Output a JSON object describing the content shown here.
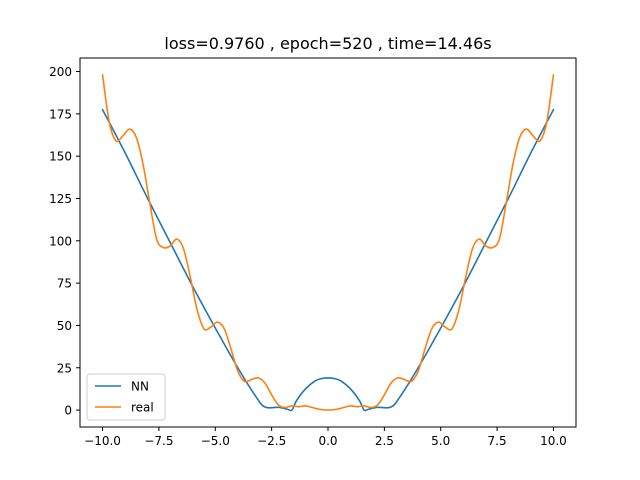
{
  "chart_data": {
    "type": "line",
    "title": "loss=0.9760 , epoch=520 , time=14.46s",
    "xlabel": "",
    "ylabel": "",
    "xlim": [
      -11.0,
      11.0
    ],
    "ylim": [
      -10.0,
      208.0
    ],
    "xticks": [
      -10.0,
      -7.5,
      -5.0,
      -2.5,
      0.0,
      2.5,
      5.0,
      7.5,
      10.0
    ],
    "xtick_labels": [
      "−10.0",
      "−7.5",
      "−5.0",
      "−2.5",
      "0.0",
      "2.5",
      "5.0",
      "7.5",
      "10.0"
    ],
    "yticks": [
      0,
      25,
      50,
      75,
      100,
      125,
      150,
      175,
      200
    ],
    "ytick_labels": [
      "0",
      "25",
      "50",
      "75",
      "100",
      "125",
      "150",
      "175",
      "200"
    ],
    "grid": false,
    "legend": {
      "position": "lower-left"
    },
    "series": [
      {
        "name": "NN",
        "color": "#1f77b4",
        "x": [
          -10.0,
          -9.0,
          -8.0,
          -7.0,
          -6.0,
          -5.0,
          -4.0,
          -3.2,
          -2.8,
          -2.2,
          -1.8,
          -1.6,
          -1.4,
          -1.0,
          -0.6,
          -0.3,
          0.0,
          0.3,
          0.6,
          1.0,
          1.4,
          1.6,
          1.8,
          2.2,
          2.8,
          3.2,
          4.0,
          5.0,
          6.0,
          7.0,
          8.0,
          9.0,
          10.0
        ],
        "y": [
          177.5,
          152.0,
          125.0,
          99.0,
          73.0,
          48.5,
          25.0,
          8.0,
          1.8,
          1.6,
          0.5,
          0.0,
          5.5,
          12.5,
          17.0,
          18.6,
          19.0,
          18.6,
          17.0,
          12.5,
          5.5,
          0.0,
          0.5,
          1.6,
          1.8,
          8.0,
          25.0,
          48.5,
          73.0,
          99.0,
          125.0,
          152.0,
          177.5
        ]
      },
      {
        "name": "real",
        "color": "#ff7f0e",
        "x": [
          -10.0,
          -9.7,
          -9.4,
          -9.1,
          -8.8,
          -8.5,
          -8.2,
          -7.9,
          -7.6,
          -7.3,
          -7.0,
          -6.7,
          -6.4,
          -6.1,
          -5.8,
          -5.5,
          -5.2,
          -4.9,
          -4.6,
          -4.3,
          -4.0,
          -3.7,
          -3.4,
          -3.1,
          -2.8,
          -2.5,
          -2.2,
          -1.9,
          -1.6,
          -1.3,
          -1.0,
          -0.7,
          -0.4,
          0.0,
          0.4,
          0.7,
          1.0,
          1.3,
          1.6,
          1.9,
          2.2,
          2.5,
          2.8,
          3.1,
          3.4,
          3.7,
          4.0,
          4.3,
          4.6,
          4.9,
          5.2,
          5.5,
          5.8,
          6.1,
          6.4,
          6.7,
          7.0,
          7.3,
          7.6,
          7.9,
          8.2,
          8.5,
          8.8,
          9.1,
          9.4,
          9.7,
          10.0
        ],
        "y": [
          198.0,
          170.0,
          159.0,
          162.0,
          166.0,
          161.0,
          145.0,
          122.0,
          101.0,
          96.0,
          97.0,
          101.0,
          95.0,
          78.0,
          59.0,
          48.0,
          49.0,
          52.0,
          48.0,
          36.0,
          23.0,
          17.0,
          18.0,
          19.0,
          16.0,
          9.0,
          3.0,
          1.5,
          2.5,
          2.0,
          2.5,
          1.5,
          0.5,
          0.0,
          0.5,
          1.5,
          2.5,
          2.0,
          2.5,
          1.5,
          3.0,
          9.0,
          16.0,
          19.0,
          18.0,
          17.0,
          23.0,
          36.0,
          48.0,
          52.0,
          49.0,
          48.0,
          59.0,
          78.0,
          95.0,
          101.0,
          97.0,
          96.0,
          101.0,
          122.0,
          145.0,
          161.0,
          166.0,
          162.0,
          159.0,
          170.0,
          198.0
        ]
      }
    ]
  }
}
